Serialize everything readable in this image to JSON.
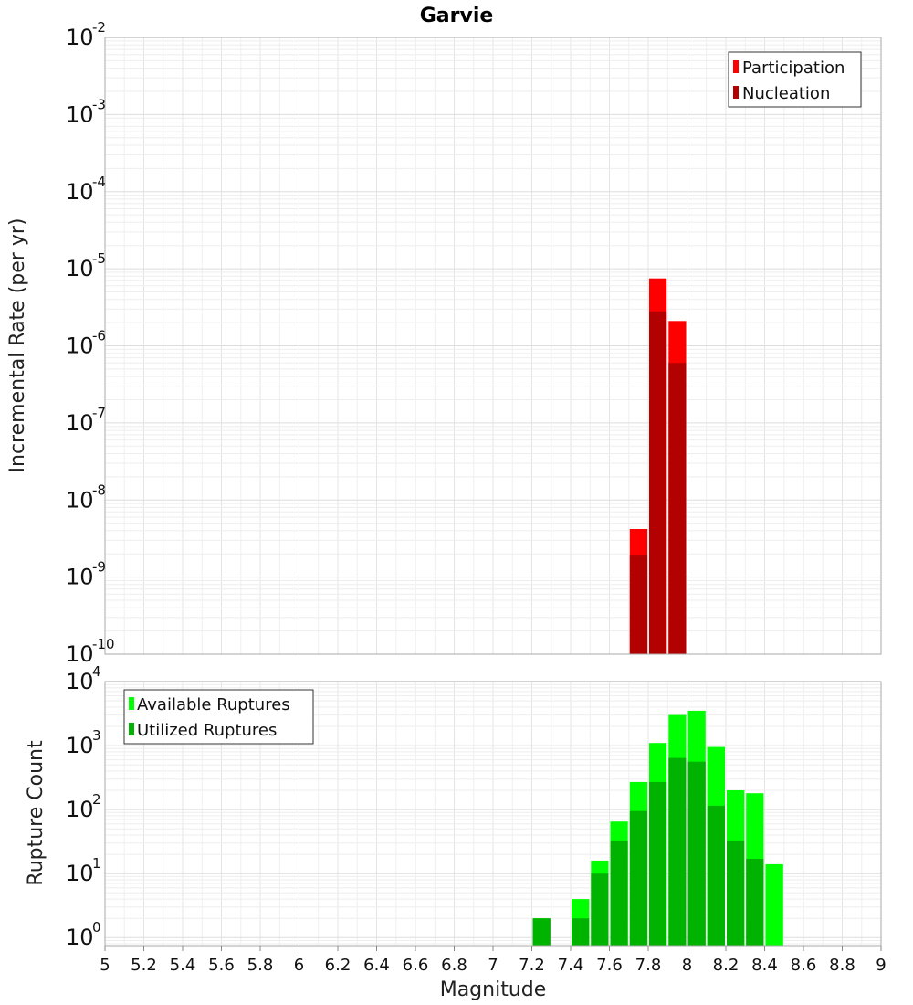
{
  "chart_data": [
    {
      "type": "bar",
      "title": "Garvie",
      "xlabel": "",
      "ylabel": "Incremental Rate (per yr)",
      "y_scale": "log",
      "ylim": [
        1e-10,
        0.01
      ],
      "xlim": [
        5,
        9
      ],
      "y_tick_exponents": [
        "-10",
        "-9",
        "-8",
        "-7",
        "-6",
        "-5",
        "-4",
        "-3",
        "-2"
      ],
      "y_tick_base": "10",
      "legend_position": "top-right",
      "grid": true,
      "x": [
        7.75,
        7.85,
        7.95
      ],
      "series": [
        {
          "name": "Participation",
          "color": "#ff0000",
          "values": [
            4.2e-09,
            7.5e-06,
            2.1e-06
          ]
        },
        {
          "name": "Nucleation",
          "color": "#b30000",
          "values": [
            1.9e-09,
            2.8e-06,
            6e-07
          ]
        }
      ]
    },
    {
      "type": "bar",
      "title": "",
      "xlabel": "Magnitude",
      "ylabel": "Rupture Count",
      "y_scale": "log",
      "ylim": [
        0.75,
        10000
      ],
      "xlim": [
        5,
        9
      ],
      "y_tick_exponents": [
        "0",
        "1",
        "2",
        "3",
        "4"
      ],
      "y_tick_base": "10",
      "legend_position": "top-left",
      "grid": true,
      "x_ticks": [
        "5",
        "5.2",
        "5.4",
        "5.6",
        "5.8",
        "6",
        "6.2",
        "6.4",
        "6.6",
        "6.8",
        "7",
        "7.2",
        "7.4",
        "7.6",
        "7.8",
        "8",
        "8.2",
        "8.4",
        "8.6",
        "8.8",
        "9"
      ],
      "x": [
        7.25,
        7.45,
        7.55,
        7.65,
        7.75,
        7.85,
        7.95,
        8.05,
        8.15,
        8.25,
        8.35,
        8.45
      ],
      "series": [
        {
          "name": "Available Ruptures",
          "color": "#00ff00",
          "values": [
            2,
            4,
            16,
            65,
            270,
            1100,
            3000,
            3500,
            950,
            200,
            180,
            14
          ]
        },
        {
          "name": "Utilized Ruptures",
          "color": "#00b300",
          "values": [
            2,
            2,
            10,
            33,
            95,
            270,
            640,
            560,
            115,
            33,
            17,
            null
          ]
        }
      ]
    }
  ]
}
